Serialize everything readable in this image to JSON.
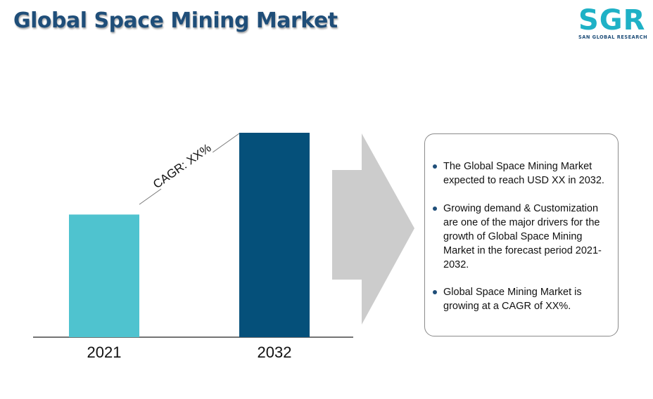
{
  "title": "Global Space Mining Market",
  "logo": {
    "letters": "SGR",
    "subtitle": "SAN GLOBAL RESEARCH"
  },
  "chart_data": {
    "type": "bar",
    "categories": [
      "2021",
      "2032"
    ],
    "values": [
      0.6,
      1.0
    ],
    "colors": [
      "#4fc3cf",
      "#05507a"
    ],
    "annotation": "CAGR: XX%",
    "note": "values are relative bar heights; the chart has no y-axis or numeric labels"
  },
  "info": {
    "bullets": [
      "The Global Space Mining Market expected to reach USD  XX in 2032.",
      "Growing demand & Customization are one of the major drivers for the growth of Global Space Mining Market in the forecast period 2021-2032.",
      "Global Space Mining Market is growing at a CAGR of XX%."
    ],
    "bullet_color": "#1f4e79"
  },
  "arrow_color": "#cccccc"
}
